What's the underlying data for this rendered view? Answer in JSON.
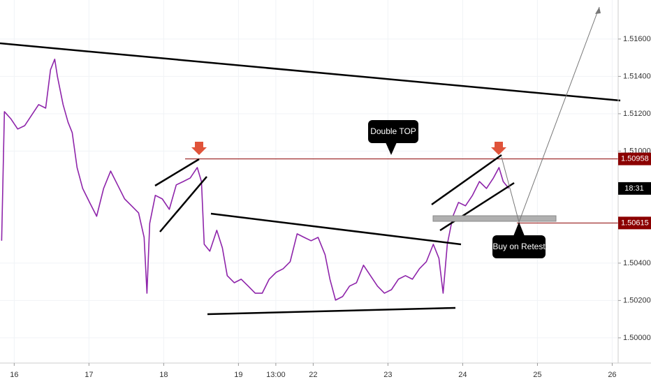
{
  "chart_data": {
    "type": "line",
    "annotations": [
      "Double TOP",
      "Buy on Retest"
    ],
    "countdown": "18:31",
    "levels": [
      {
        "value": 1.50958,
        "label": "1.50958"
      },
      {
        "value": 1.50615,
        "label": "1.50615"
      }
    ],
    "x": [
      -0.168,
      -0.131,
      -0.047,
      0.047,
      0.14,
      0.234,
      0.327,
      0.421,
      0.486,
      0.542,
      0.579,
      0.654,
      0.72,
      0.776,
      0.841,
      0.916,
      1.009,
      1.103,
      1.196,
      1.29,
      1.383,
      1.477,
      1.57,
      1.664,
      1.738,
      1.776,
      1.813,
      1.888,
      1.981,
      2.075,
      2.168,
      2.262,
      2.355,
      2.449,
      2.505,
      2.542,
      2.617,
      2.71,
      2.785,
      2.85,
      2.944,
      3.037,
      3.131,
      3.224,
      3.318,
      3.411,
      3.505,
      3.598,
      3.692,
      3.785,
      3.879,
      3.972,
      4.065,
      4.159,
      4.224,
      4.299,
      4.393,
      4.486,
      4.579,
      4.673,
      4.766,
      4.86,
      4.953,
      5.047,
      5.14,
      5.234,
      5.327,
      5.421,
      5.514,
      5.607,
      5.682,
      5.738,
      5.794,
      5.869,
      5.944,
      6.037,
      6.131,
      6.224,
      6.318,
      6.411,
      6.486,
      6.542,
      6.617
    ],
    "series": [
      {
        "color": "#8e24aa",
        "values": [
          1.5052,
          1.51211,
          1.51174,
          1.51118,
          1.51136,
          1.51193,
          1.51249,
          1.5123,
          1.51436,
          1.51492,
          1.51398,
          1.51249,
          1.51155,
          1.51099,
          1.50912,
          1.508,
          1.50725,
          1.50651,
          1.508,
          1.50893,
          1.50819,
          1.50744,
          1.50707,
          1.50669,
          1.50538,
          1.50239,
          1.50613,
          1.50763,
          1.50744,
          1.50688,
          1.50819,
          1.50837,
          1.50856,
          1.50912,
          1.50837,
          1.50501,
          1.50464,
          1.50576,
          1.50482,
          1.50333,
          1.50295,
          1.50314,
          1.50277,
          1.50239,
          1.50239,
          1.50314,
          1.50351,
          1.5037,
          1.50408,
          1.50557,
          1.50538,
          1.5052,
          1.50538,
          1.50445,
          1.50314,
          1.50202,
          1.50221,
          1.50277,
          1.50295,
          1.50389,
          1.50333,
          1.50277,
          1.50239,
          1.50258,
          1.50314,
          1.50333,
          1.50314,
          1.5037,
          1.50408,
          1.50501,
          1.50426,
          1.50239,
          1.50501,
          1.50651,
          1.50725,
          1.50707,
          1.50763,
          1.50837,
          1.508,
          1.50856,
          1.50912,
          1.50837,
          1.508
        ]
      }
    ],
    "xlim": [
      -0.19,
      8.08
    ],
    "xticks": [
      {
        "value": 0,
        "label": "16"
      },
      {
        "value": 1,
        "label": "17"
      },
      {
        "value": 2,
        "label": "18"
      },
      {
        "value": 3,
        "label": "19"
      },
      {
        "value": 3.5,
        "label": "13:00"
      },
      {
        "value": 4,
        "label": "22"
      },
      {
        "value": 5,
        "label": "23"
      },
      {
        "value": 6,
        "label": "24"
      },
      {
        "value": 7,
        "label": "25"
      },
      {
        "value": 8,
        "label": "26"
      }
    ],
    "ylim": [
      1.49865,
      1.51809
    ],
    "yticks": [
      {
        "value": 1.5,
        "label": "1.50000"
      },
      {
        "value": 1.502,
        "label": "1.50200"
      },
      {
        "value": 1.504,
        "label": "1.50400"
      },
      {
        "value": 1.51,
        "label": "1.51000"
      },
      {
        "value": 1.512,
        "label": "1.51200"
      },
      {
        "value": 1.514,
        "label": "1.51400"
      },
      {
        "value": 1.516,
        "label": "1.51600"
      }
    ]
  }
}
